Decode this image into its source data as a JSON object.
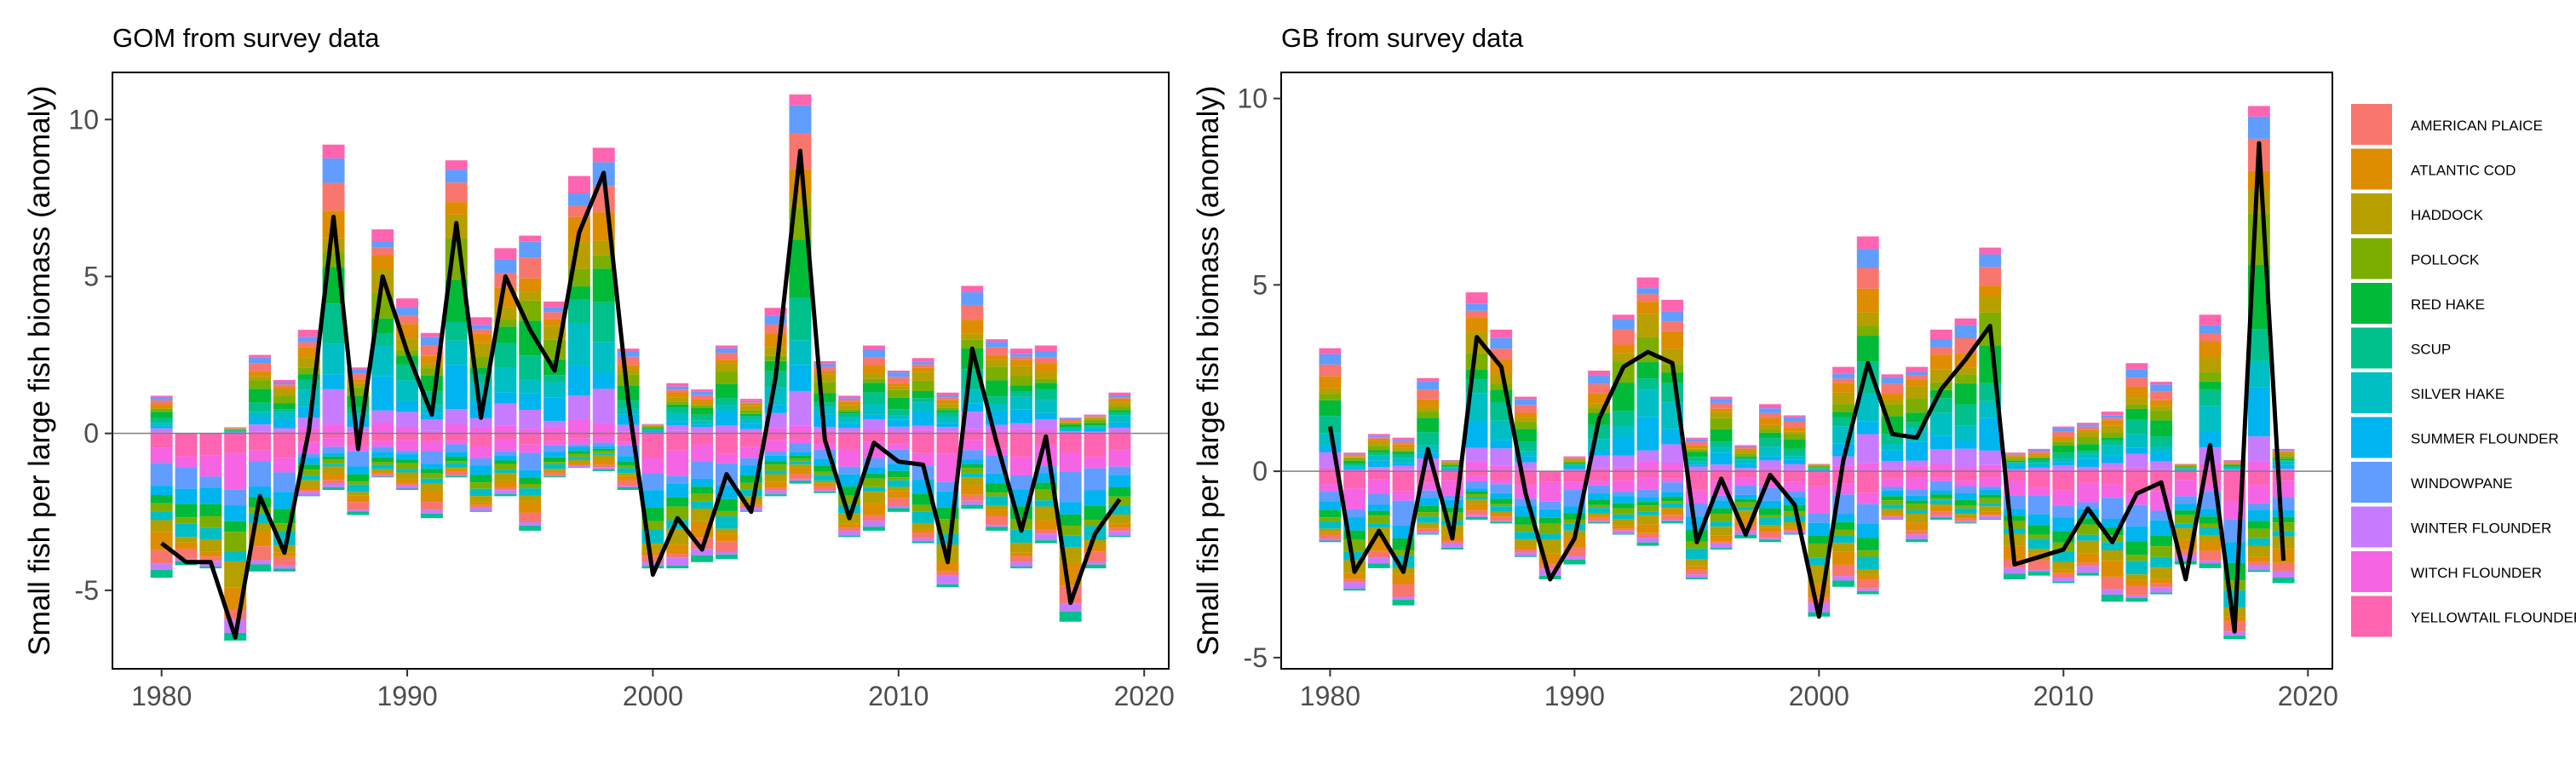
{
  "colors": {
    "AMERICAN PLAICE": "#F8766D",
    "ATLANTIC COD": "#DE8C00",
    "HADDOCK": "#B79F00",
    "POLLOCK": "#7CAE00",
    "RED HAKE": "#00BA38",
    "SCUP": "#00C08B",
    "SILVER HAKE": "#00BFC4",
    "SUMMER FLOUNDER": "#00B4F0",
    "WINDOWPANE": "#619CFF",
    "WINTER FLOUNDER": "#C77CFF",
    "WITCH FLOUNDER": "#F564E3",
    "YELLOWTAIL FLOUNDER": "#FF64B0",
    "line": "#000000",
    "zero_line": "#7f7f7f"
  },
  "legend": {
    "placement": "right",
    "items": [
      "AMERICAN PLAICE",
      "ATLANTIC COD",
      "HADDOCK",
      "POLLOCK",
      "RED HAKE",
      "SCUP",
      "SILVER HAKE",
      "SUMMER FLOUNDER",
      "WINDOWPANE",
      "WINTER FLOUNDER",
      "WITCH FLOUNDER",
      "YELLOWTAIL FLOUNDER"
    ]
  },
  "chart_data": [
    {
      "type": "bar",
      "stacked": true,
      "title": "GOM from survey data",
      "xlabel": "",
      "ylabel": "Small fish per large fish biomass (anomaly)",
      "xlim": [
        1978,
        2021
      ],
      "ylim": [
        -7.5,
        11.5
      ],
      "x_ticks": [
        1980,
        1990,
        2000,
        2010,
        2020
      ],
      "y_ticks": [
        -5,
        0,
        5,
        10
      ],
      "grid": false,
      "x": [
        1980,
        1981,
        1982,
        1983,
        1984,
        1985,
        1986,
        1987,
        1988,
        1989,
        1990,
        1991,
        1992,
        1993,
        1994,
        1995,
        1996,
        1997,
        1998,
        1999,
        2000,
        2001,
        2002,
        2003,
        2004,
        2005,
        2006,
        2007,
        2008,
        2009,
        2010,
        2011,
        2012,
        2013,
        2014,
        2015,
        2016,
        2017,
        2018,
        2019
      ],
      "stack_totals": {
        "positive": [
          1.2,
          0.0,
          0.0,
          0.2,
          2.5,
          1.7,
          3.3,
          9.2,
          2.1,
          6.5,
          4.3,
          3.2,
          8.7,
          3.7,
          5.9,
          6.3,
          4.2,
          8.2,
          9.1,
          2.7,
          0.3,
          1.6,
          1.4,
          2.8,
          1.1,
          4.0,
          10.8,
          2.3,
          1.2,
          2.8,
          2.0,
          2.4,
          1.3,
          4.7,
          3.0,
          2.7,
          2.8,
          0.5,
          0.6,
          1.3
        ],
        "negative": [
          -4.6,
          -4.2,
          -4.3,
          -6.6,
          -4.4,
          -4.4,
          -2.0,
          -1.8,
          -2.6,
          -1.4,
          -1.8,
          -2.7,
          -1.4,
          -2.5,
          -2.0,
          -3.1,
          -1.4,
          -1.1,
          -1.2,
          -1.8,
          -4.3,
          -4.3,
          -4.1,
          -4.0,
          -2.5,
          -2.0,
          -1.6,
          -1.9,
          -3.3,
          -3.1,
          -2.5,
          -3.5,
          -4.9,
          -2.4,
          -3.1,
          -4.3,
          -3.5,
          -6.0,
          -4.3,
          -3.3
        ]
      },
      "line_name": "",
      "line": [
        -3.5,
        -4.1,
        -4.1,
        -6.5,
        -2.0,
        -3.8,
        0.1,
        6.9,
        -0.5,
        5.0,
        2.6,
        0.6,
        6.7,
        0.5,
        5.0,
        3.3,
        2.0,
        6.4,
        8.3,
        1.0,
        -4.5,
        -2.7,
        -3.7,
        -1.3,
        -2.5,
        1.8,
        9.0,
        -0.2,
        -2.7,
        -0.3,
        -0.9,
        -1.0,
        -4.1,
        2.7,
        -0.3,
        -3.1,
        -0.1,
        -5.4,
        -3.2,
        -2.1
      ]
    },
    {
      "type": "bar",
      "stacked": true,
      "title": "GB from survey data",
      "xlabel": "",
      "ylabel": "Small fish per large fish biomass (anomaly)",
      "xlim": [
        1978,
        2021
      ],
      "ylim": [
        -5.3,
        10.7
      ],
      "x_ticks": [
        1980,
        1990,
        2000,
        2010,
        2020
      ],
      "y_ticks": [
        -5,
        0,
        5,
        10
      ],
      "grid": false,
      "x": [
        1980,
        1981,
        1982,
        1983,
        1984,
        1985,
        1986,
        1987,
        1988,
        1989,
        1990,
        1991,
        1992,
        1993,
        1994,
        1995,
        1996,
        1997,
        1998,
        1999,
        2000,
        2001,
        2002,
        2003,
        2004,
        2005,
        2006,
        2007,
        2008,
        2009,
        2010,
        2011,
        2012,
        2013,
        2014,
        2015,
        2016,
        2017,
        2018,
        2019
      ],
      "stack_totals": {
        "positive": [
          3.3,
          0.5,
          1.0,
          0.9,
          2.5,
          0.3,
          4.8,
          3.8,
          2.0,
          0.0,
          0.4,
          2.7,
          4.2,
          5.2,
          4.6,
          0.9,
          2.0,
          0.7,
          1.8,
          1.5,
          0.2,
          2.8,
          6.3,
          2.6,
          2.8,
          3.8,
          4.1,
          6.0,
          0.5,
          0.6,
          1.2,
          1.3,
          1.6,
          2.9,
          2.4,
          0.2,
          4.2,
          0.3,
          9.8,
          0.6
        ],
        "negative": [
          -1.9,
          -3.2,
          -2.6,
          -3.6,
          -1.7,
          -2.1,
          -1.3,
          -1.4,
          -2.3,
          -2.9,
          -2.5,
          -1.4,
          -1.7,
          -2.0,
          -1.4,
          -2.9,
          -2.1,
          -1.8,
          -1.9,
          -1.7,
          -3.9,
          -3.1,
          -3.3,
          -1.3,
          -1.9,
          -1.3,
          -1.4,
          -1.3,
          -2.9,
          -2.8,
          -3.0,
          -2.8,
          -3.5,
          -3.5,
          -3.3,
          -2.5,
          -2.6,
          -4.5,
          -2.7,
          -3.0
        ]
      },
      "line_name": "",
      "line": [
        1.2,
        -2.7,
        -1.6,
        -2.7,
        0.6,
        -1.8,
        3.6,
        2.8,
        -0.6,
        -2.9,
        -1.8,
        1.4,
        2.8,
        3.2,
        2.9,
        -1.9,
        -0.2,
        -1.7,
        -0.1,
        -0.9,
        -3.9,
        0.3,
        2.9,
        1.0,
        0.9,
        2.2,
        3.0,
        3.9,
        -2.5,
        -2.3,
        -2.1,
        -1.0,
        -1.9,
        -0.6,
        -0.3,
        -2.9,
        0.7,
        -4.3,
        8.8,
        -2.4
      ]
    }
  ]
}
